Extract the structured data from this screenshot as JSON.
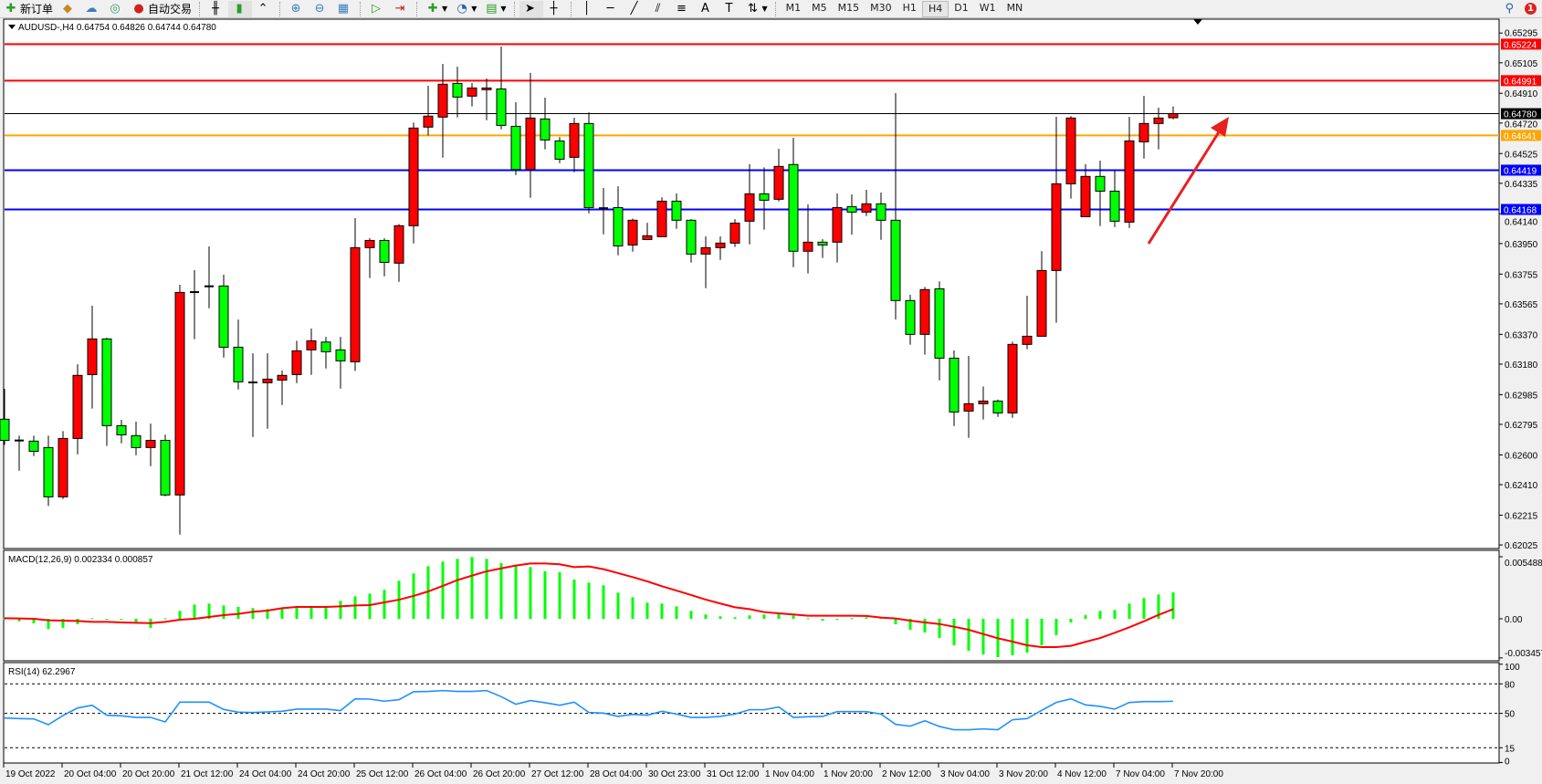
{
  "toolbar": {
    "new_order": "新订单",
    "auto_trading": "自动交易",
    "timeframes": [
      "M1",
      "M5",
      "M15",
      "M30",
      "H1",
      "H4",
      "D1",
      "W1",
      "MN"
    ],
    "active_timeframe": "H4",
    "notification_count": "1"
  },
  "chart": {
    "header": "AUDUSD-,H4  0.64754 0.64826 0.64744 0.64780",
    "bull_color": "#ff0000",
    "bear_color": "#00ff00",
    "price_axis": [
      "0.65295",
      "0.65105",
      "0.64910",
      "0.64720",
      "0.64525",
      "0.64335",
      "0.64140",
      "0.63950",
      "0.63755",
      "0.63565",
      "0.63370",
      "0.63180",
      "0.62985",
      "0.62795",
      "0.62600",
      "0.62410",
      "0.62215",
      "0.62025"
    ],
    "levels": [
      {
        "price": 0.65224,
        "label": "0.65224",
        "color": "#ff0000"
      },
      {
        "price": 0.64991,
        "label": "0.64991",
        "color": "#ff0000"
      },
      {
        "price": 0.6478,
        "label": "0.64780",
        "color": "#000000"
      },
      {
        "price": 0.64641,
        "label": "0.64641",
        "color": "#ffa500"
      },
      {
        "price": 0.64419,
        "label": "0.64419",
        "color": "#0000ff"
      },
      {
        "price": 0.64168,
        "label": "0.64168",
        "color": "#0000ff"
      }
    ],
    "candles_ohlc": [
      [
        0.62828,
        0.63022,
        0.62664,
        0.62693
      ],
      [
        0.62692,
        0.62723,
        0.62499,
        0.6269
      ],
      [
        0.62688,
        0.62723,
        0.62592,
        0.62623
      ],
      [
        0.62647,
        0.62723,
        0.62274,
        0.62332
      ],
      [
        0.62332,
        0.62752,
        0.62318,
        0.62705
      ],
      [
        0.62705,
        0.63179,
        0.62604,
        0.63108
      ],
      [
        0.63113,
        0.63553,
        0.62896,
        0.63341
      ],
      [
        0.63341,
        0.63349,
        0.62657,
        0.62787
      ],
      [
        0.62787,
        0.62824,
        0.62674,
        0.62728
      ],
      [
        0.62723,
        0.62812,
        0.62598,
        0.62647
      ],
      [
        0.62647,
        0.628,
        0.62528,
        0.62693
      ],
      [
        0.62693,
        0.62729,
        0.62336,
        0.62344
      ],
      [
        0.62344,
        0.63687,
        0.62091,
        0.63638
      ],
      [
        0.6364,
        0.6378,
        0.63339,
        0.6364
      ],
      [
        0.63677,
        0.63932,
        0.63537,
        0.63677
      ],
      [
        0.63679,
        0.63751,
        0.63222,
        0.63288
      ],
      [
        0.63288,
        0.63465,
        0.63018,
        0.63067
      ],
      [
        0.63063,
        0.63249,
        0.62715,
        0.63063
      ],
      [
        0.63061,
        0.63249,
        0.62767,
        0.63084
      ],
      [
        0.63078,
        0.63139,
        0.62919,
        0.63108
      ],
      [
        0.63113,
        0.63329,
        0.63059,
        0.63265
      ],
      [
        0.63271,
        0.63407,
        0.63111,
        0.63329
      ],
      [
        0.63321,
        0.63354,
        0.63152,
        0.63259
      ],
      [
        0.63271,
        0.63354,
        0.63024,
        0.63201
      ],
      [
        0.63195,
        0.64113,
        0.63137,
        0.63924
      ],
      [
        0.63924,
        0.63984,
        0.6373,
        0.6397
      ],
      [
        0.6397,
        0.63984,
        0.63741,
        0.6383
      ],
      [
        0.63825,
        0.64075,
        0.63706,
        0.64064
      ],
      [
        0.64064,
        0.64723,
        0.63951,
        0.64688
      ],
      [
        0.64694,
        0.64958,
        0.64641,
        0.64764
      ],
      [
        0.64758,
        0.65098,
        0.64499,
        0.64968
      ],
      [
        0.64973,
        0.6508,
        0.64756,
        0.64886
      ],
      [
        0.64892,
        0.64975,
        0.64826,
        0.64944
      ],
      [
        0.64933,
        0.65005,
        0.64738,
        0.64944
      ],
      [
        0.64938,
        0.65209,
        0.6468,
        0.64705
      ],
      [
        0.64699,
        0.64853,
        0.64388,
        0.64423
      ],
      [
        0.64423,
        0.6504,
        0.64243,
        0.64752
      ],
      [
        0.64746,
        0.64882,
        0.64552,
        0.64612
      ],
      [
        0.64606,
        0.64631,
        0.64464,
        0.64489
      ],
      [
        0.64501,
        0.64754,
        0.64406,
        0.64717
      ],
      [
        0.64717,
        0.64789,
        0.64143,
        0.6418
      ],
      [
        0.64176,
        0.64305,
        0.64009,
        0.64176
      ],
      [
        0.6418,
        0.64316,
        0.63875,
        0.63935
      ],
      [
        0.63941,
        0.6411,
        0.63898,
        0.64099
      ],
      [
        0.63976,
        0.64083,
        0.63976,
        0.64
      ],
      [
        0.63994,
        0.64246,
        0.63994,
        0.64221
      ],
      [
        0.64221,
        0.6427,
        0.64044,
        0.64099
      ],
      [
        0.64099,
        0.64106,
        0.63828,
        0.63883
      ],
      [
        0.63883,
        0.63996,
        0.63665,
        0.63924
      ],
      [
        0.63924,
        0.63996,
        0.63846,
        0.63953
      ],
      [
        0.63953,
        0.64106,
        0.63928,
        0.64081
      ],
      [
        0.64093,
        0.64457,
        0.63945,
        0.64268
      ],
      [
        0.64268,
        0.64437,
        0.64039,
        0.64227
      ],
      [
        0.64233,
        0.64556,
        0.64219,
        0.64443
      ],
      [
        0.64455,
        0.64626,
        0.63799,
        0.63901
      ],
      [
        0.63901,
        0.642,
        0.63759,
        0.63959
      ],
      [
        0.63959,
        0.63978,
        0.63858,
        0.63941
      ],
      [
        0.63959,
        0.6427,
        0.63829,
        0.6418
      ],
      [
        0.64186,
        0.64264,
        0.64007,
        0.64151
      ],
      [
        0.64151,
        0.64293,
        0.64126,
        0.64204
      ],
      [
        0.64204,
        0.64276,
        0.63974,
        0.64099
      ],
      [
        0.64099,
        0.64911,
        0.63465,
        0.63586
      ],
      [
        0.63586,
        0.63623,
        0.63304,
        0.6337
      ],
      [
        0.6337,
        0.63673,
        0.6324,
        0.63656
      ],
      [
        0.63661,
        0.63708,
        0.63076,
        0.63218
      ],
      [
        0.63218,
        0.63267,
        0.62785,
        0.62874
      ],
      [
        0.6288,
        0.63232,
        0.62709,
        0.62927
      ],
      [
        0.62927,
        0.63037,
        0.62826,
        0.62944
      ],
      [
        0.62944,
        0.62954,
        0.62843,
        0.62868
      ],
      [
        0.62868,
        0.63323,
        0.62837,
        0.63306
      ],
      [
        0.63306,
        0.63617,
        0.63275,
        0.63358
      ],
      [
        0.63358,
        0.63902,
        0.63358,
        0.63778
      ],
      [
        0.63778,
        0.6476,
        0.63444,
        0.64332
      ],
      [
        0.64332,
        0.64764,
        0.64237,
        0.64752
      ],
      [
        0.64122,
        0.64457,
        0.64122,
        0.64379
      ],
      [
        0.64379,
        0.6448,
        0.64062,
        0.64285
      ],
      [
        0.64285,
        0.64422,
        0.64056,
        0.64093
      ],
      [
        0.64087,
        0.6476,
        0.6405,
        0.64606
      ],
      [
        0.646,
        0.64894,
        0.64493,
        0.64717
      ],
      [
        0.64717,
        0.64818,
        0.64552,
        0.64752
      ],
      [
        0.64754,
        0.64826,
        0.64744,
        0.6478
      ]
    ],
    "time_axis": [
      "19 Oct 2022",
      "20 Oct 04:00",
      "20 Oct 20:00",
      "21 Oct 12:00",
      "24 Oct 04:00",
      "24 Oct 20:00",
      "25 Oct 12:00",
      "26 Oct 04:00",
      "26 Oct 20:00",
      "27 Oct 12:00",
      "28 Oct 04:00",
      "30 Oct 23:00",
      "31 Oct 12:00",
      "1 Nov 04:00",
      "1 Nov 20:00",
      "2 Nov 12:00",
      "3 Nov 04:00",
      "3 Nov 20:00",
      "4 Nov 12:00",
      "7 Nov 04:00",
      "7 Nov 20:00"
    ],
    "arrow_color": "#ff0000"
  },
  "macd": {
    "header": "MACD(12,26,9) 0.002334 0.000857",
    "axis": [
      "0.005488",
      "0.00",
      "-0.003457"
    ],
    "hist_color": "#00ff00",
    "signal_color": "#ff0000",
    "histogram": [
      -5e-05,
      -0.00022,
      -0.0004,
      -0.00091,
      -0.0008,
      -0.00048,
      5e-05,
      -5e-05,
      -5e-05,
      -0.00027,
      -0.0008,
      5e-05,
      0.0007,
      0.00126,
      0.00135,
      0.00118,
      0.00105,
      0.00094,
      0.00086,
      0.00091,
      0.001,
      0.001,
      0.001,
      0.00159,
      0.00199,
      0.00223,
      0.00256,
      0.00336,
      0.00401,
      0.00465,
      0.00506,
      0.0053,
      0.00546,
      0.0053,
      0.00492,
      0.00471,
      0.00457,
      0.0042,
      0.00412,
      0.00347,
      0.0032,
      0.00296,
      0.00231,
      0.00191,
      0.00143,
      0.00135,
      0.0011,
      0.0007,
      0.00038,
      0.00022,
      0.00013,
      0.0003,
      0.00038,
      0.00046,
      0.0003,
      5e-05,
      -0.00016,
      -5e-05,
      5e-05,
      0.00013,
      0.00013,
      -0.00048,
      -0.00097,
      -0.00121,
      -0.0017,
      -0.00234,
      -0.00283,
      -0.00315,
      -0.00339,
      -0.00323,
      -0.00299,
      -0.00234,
      -0.00145,
      -0.00032,
      0.00032,
      0.0007,
      0.00078,
      0.00135,
      0.00183,
      0.00215,
      0.002334
    ],
    "signal": [
      5e-05,
      3e-05,
      0,
      -0.00013,
      -0.00016,
      -0.00019,
      -0.00027,
      -0.00027,
      -0.00032,
      -0.00035,
      -0.00038,
      -0.00027,
      -8e-05,
      0,
      0.00016,
      0.00032,
      0.00043,
      0.00062,
      0.00073,
      0.00094,
      0.00105,
      0.00105,
      0.00105,
      0.0011,
      0.00118,
      0.00121,
      0.00145,
      0.00169,
      0.00202,
      0.00242,
      0.00291,
      0.00342,
      0.00382,
      0.0042,
      0.00446,
      0.00471,
      0.00489,
      0.00489,
      0.00482,
      0.00457,
      0.00463,
      0.00439,
      0.00404,
      0.00369,
      0.00331,
      0.00288,
      0.0025,
      0.0021,
      0.0017,
      0.00135,
      0.00102,
      0.00086,
      0.00059,
      0.00048,
      0.00038,
      0.00027,
      0.00027,
      0.00027,
      0.00027,
      0.00025,
      0.00011,
      3e-05,
      -0.00016,
      -0.00032,
      -0.00046,
      -0.0007,
      -0.00097,
      -0.00135,
      -0.00172,
      -0.00202,
      -0.00234,
      -0.0025,
      -0.0025,
      -0.00239,
      -0.00204,
      -0.0017,
      -0.00124,
      -0.00075,
      -0.00022,
      0.00035,
      0.000857
    ]
  },
  "rsi": {
    "header": "RSI(14) 62.2967",
    "axis": [
      "100",
      "80",
      "50",
      "15",
      "0"
    ],
    "line_color": "#1e90ff",
    "values": [
      45.3,
      44.7,
      44.4,
      38.5,
      47.8,
      55.5,
      58.3,
      48.1,
      47.5,
      45.9,
      45.9,
      41.3,
      61.4,
      61.4,
      61.4,
      54.0,
      51.2,
      50.9,
      51.5,
      52.1,
      54.3,
      54.3,
      54.3,
      52.8,
      64.8,
      64.5,
      62.4,
      63.9,
      72.0,
      72.3,
      73.2,
      72.3,
      72.3,
      73.2,
      67.0,
      59.3,
      63.0,
      60.8,
      58.3,
      61.4,
      50.9,
      50.3,
      46.9,
      49.0,
      48.1,
      52.1,
      49.3,
      45.9,
      45.9,
      46.9,
      49.3,
      53.7,
      53.7,
      56.5,
      45.9,
      46.6,
      46.9,
      51.8,
      51.8,
      51.8,
      49.3,
      38.8,
      37.0,
      42.5,
      36.7,
      33.3,
      33.3,
      34.2,
      33.3,
      43.5,
      44.7,
      53.1,
      61.1,
      64.8,
      58.6,
      57.1,
      54.3,
      61.1,
      62.0,
      62.0,
      62.2967
    ]
  }
}
